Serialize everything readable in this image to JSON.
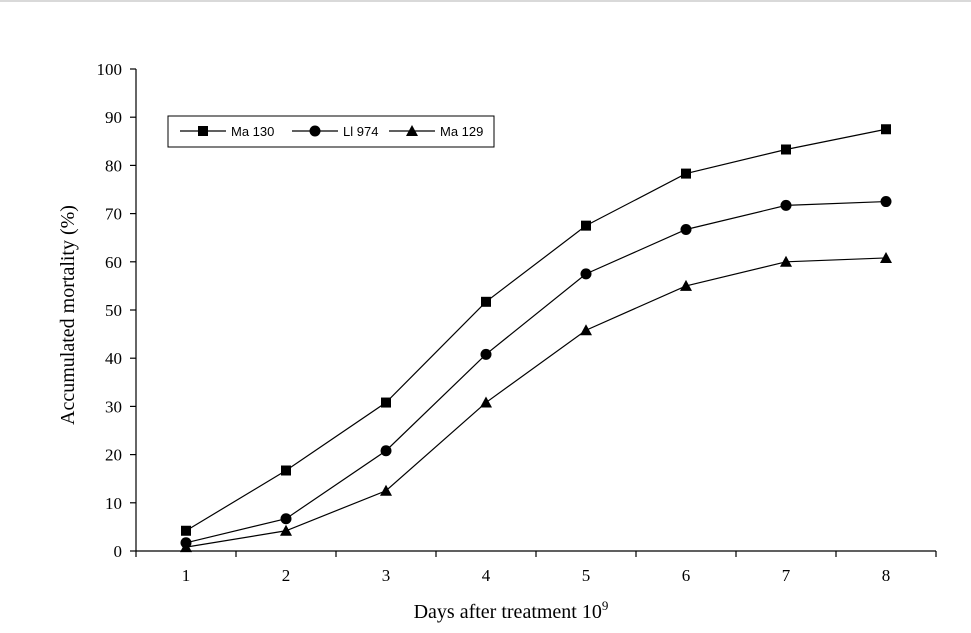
{
  "chart_data": {
    "type": "line",
    "title": "",
    "xlabel": "Days after treatment 10",
    "xlabel_superscript": "9",
    "ylabel": "Accumulated mortality (%)",
    "x": [
      1,
      2,
      3,
      4,
      5,
      6,
      7,
      8
    ],
    "xlim": [
      0.5,
      8.5
    ],
    "ylim": [
      0,
      100
    ],
    "yticks": [
      0,
      10,
      20,
      30,
      40,
      50,
      60,
      70,
      80,
      90,
      100
    ],
    "grid": false,
    "legend_position": "top-left",
    "series": [
      {
        "name": "Ma 130",
        "marker": "square",
        "values": [
          4.2,
          16.7,
          30.8,
          51.7,
          67.5,
          78.3,
          83.3,
          87.5
        ]
      },
      {
        "name": "Ll 974",
        "marker": "circle",
        "values": [
          1.7,
          6.7,
          20.8,
          40.8,
          57.5,
          66.7,
          71.7,
          72.5
        ]
      },
      {
        "name": "Ma 129",
        "marker": "triangle",
        "values": [
          0.8,
          4.2,
          12.5,
          30.8,
          45.8,
          55.0,
          60.0,
          60.8
        ]
      }
    ]
  },
  "colors": {
    "line": "#000000",
    "background": "#ffffff"
  }
}
